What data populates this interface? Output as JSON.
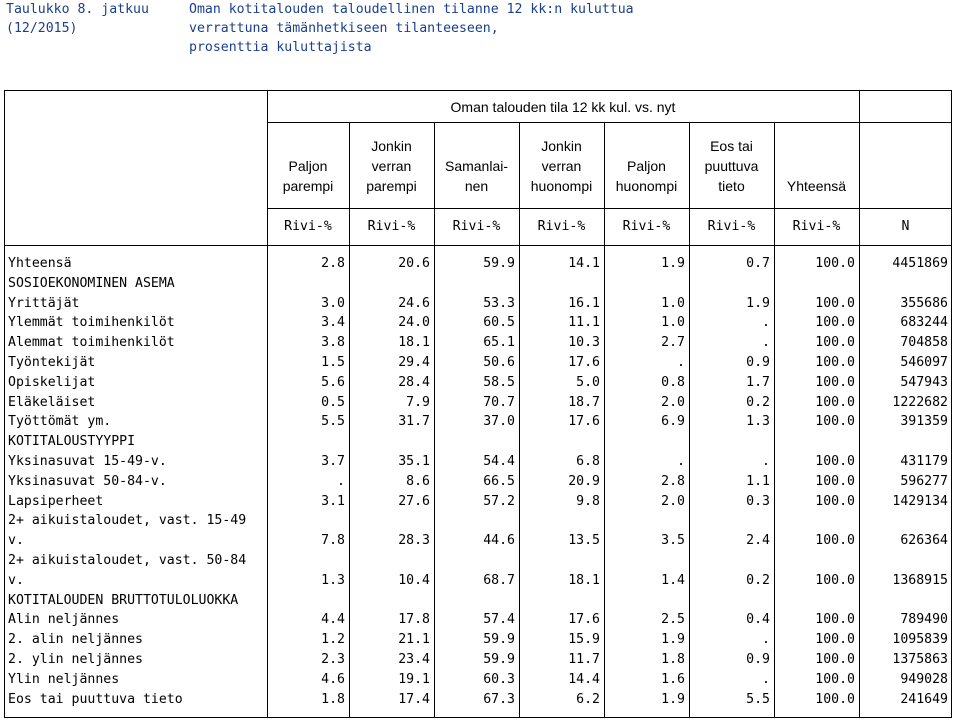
{
  "title": {
    "label_line1": "Taulukko 8. jatkuu",
    "label_line2": "(12/2015)",
    "text_line1": "Oman kotitalouden taloudellinen tilanne 12 kk:n kuluttua",
    "text_line2": "verrattuna tämänhetkiseen tilanteeseen,",
    "text_line3": "prosenttia kuluttajista"
  },
  "table": {
    "spanner": "Oman talouden tila 12 kk kul. vs. nyt",
    "headers": [
      {
        "line1": "",
        "line2": "Paljon",
        "line3": "parempi"
      },
      {
        "line1": "Jonkin",
        "line2": "verran",
        "line3": "parempi"
      },
      {
        "line1": "",
        "line2": "Samanlai-",
        "line3": "nen"
      },
      {
        "line1": "Jonkin",
        "line2": "verran",
        "line3": "huonompi"
      },
      {
        "line1": "",
        "line2": "Paljon",
        "line3": "huonompi"
      },
      {
        "line1": "Eos tai",
        "line2": "puuttuva",
        "line3": "tieto"
      },
      {
        "line1": "",
        "line2": "",
        "line3": "Yhteensä"
      },
      {
        "line1": "",
        "line2": "",
        "line3": ""
      }
    ],
    "units": [
      "Rivi-%",
      "Rivi-%",
      "Rivi-%",
      "Rivi-%",
      "Rivi-%",
      "Rivi-%",
      "Rivi-%",
      "N"
    ],
    "rows": [
      {
        "label": "Yhteensä",
        "values": [
          "2.8",
          "20.6",
          "59.9",
          "14.1",
          "1.9",
          "0.7",
          "100.0",
          "4451869"
        ]
      },
      {
        "label": "SOSIOEKONOMINEN ASEMA",
        "values": [
          "",
          "",
          "",
          "",
          "",
          "",
          "",
          ""
        ]
      },
      {
        "label": "Yrittäjät",
        "values": [
          "3.0",
          "24.6",
          "53.3",
          "16.1",
          "1.0",
          "1.9",
          "100.0",
          "355686"
        ]
      },
      {
        "label": "Ylemmät toimihenkilöt",
        "values": [
          "3.4",
          "24.0",
          "60.5",
          "11.1",
          "1.0",
          ".",
          "100.0",
          "683244"
        ]
      },
      {
        "label": "Alemmat toimihenkilöt",
        "values": [
          "3.8",
          "18.1",
          "65.1",
          "10.3",
          "2.7",
          ".",
          "100.0",
          "704858"
        ]
      },
      {
        "label": "Työntekijät",
        "values": [
          "1.5",
          "29.4",
          "50.6",
          "17.6",
          ".",
          "0.9",
          "100.0",
          "546097"
        ]
      },
      {
        "label": "Opiskelijat",
        "values": [
          "5.6",
          "28.4",
          "58.5",
          "5.0",
          "0.8",
          "1.7",
          "100.0",
          "547943"
        ]
      },
      {
        "label": "Eläkeläiset",
        "values": [
          "0.5",
          "7.9",
          "70.7",
          "18.7",
          "2.0",
          "0.2",
          "100.0",
          "1222682"
        ]
      },
      {
        "label": "Työttömät ym.",
        "values": [
          "5.5",
          "31.7",
          "37.0",
          "17.6",
          "6.9",
          "1.3",
          "100.0",
          "391359"
        ]
      },
      {
        "label": "KOTITALOUSTYYPPI",
        "values": [
          "",
          "",
          "",
          "",
          "",
          "",
          "",
          ""
        ]
      },
      {
        "label": "Yksinasuvat 15-49-v.",
        "values": [
          "3.7",
          "35.1",
          "54.4",
          "6.8",
          ".",
          ".",
          "100.0",
          "431179"
        ]
      },
      {
        "label": "Yksinasuvat 50-84-v.",
        "values": [
          ".",
          "8.6",
          "66.5",
          "20.9",
          "2.8",
          "1.1",
          "100.0",
          "596277"
        ]
      },
      {
        "label": "Lapsiperheet",
        "values": [
          "3.1",
          "27.6",
          "57.2",
          "9.8",
          "2.0",
          "0.3",
          "100.0",
          "1429134"
        ]
      },
      {
        "label": "2+ aikuistaloudet, vast. 15-49",
        "values": [
          "",
          "",
          "",
          "",
          "",
          "",
          "",
          ""
        ]
      },
      {
        "label": "v.",
        "values": [
          "7.8",
          "28.3",
          "44.6",
          "13.5",
          "3.5",
          "2.4",
          "100.0",
          "626364"
        ]
      },
      {
        "label": "2+ aikuistaloudet, vast. 50-84",
        "values": [
          "",
          "",
          "",
          "",
          "",
          "",
          "",
          ""
        ]
      },
      {
        "label": "v.",
        "values": [
          "1.3",
          "10.4",
          "68.7",
          "18.1",
          "1.4",
          "0.2",
          "100.0",
          "1368915"
        ]
      },
      {
        "label": "KOTITALOUDEN BRUTTOTULOLUOKKA",
        "values": [
          "",
          "",
          "",
          "",
          "",
          "",
          "",
          ""
        ]
      },
      {
        "label": "Alin neljännes",
        "values": [
          "4.4",
          "17.8",
          "57.4",
          "17.6",
          "2.5",
          "0.4",
          "100.0",
          "789490"
        ]
      },
      {
        "label": "2. alin neljännes",
        "values": [
          "1.2",
          "21.1",
          "59.9",
          "15.9",
          "1.9",
          ".",
          "100.0",
          "1095839"
        ]
      },
      {
        "label": "2. ylin neljännes",
        "values": [
          "2.3",
          "23.4",
          "59.9",
          "11.7",
          "1.8",
          "0.9",
          "100.0",
          "1375863"
        ]
      },
      {
        "label": "Ylin neljännes",
        "values": [
          "4.6",
          "19.1",
          "60.3",
          "14.4",
          "1.6",
          ".",
          "100.0",
          "949028"
        ]
      },
      {
        "label": "Eos tai puuttuva tieto",
        "values": [
          "1.8",
          "17.4",
          "67.3",
          "6.2",
          "1.9",
          "5.5",
          "100.0",
          "241649"
        ]
      }
    ]
  }
}
